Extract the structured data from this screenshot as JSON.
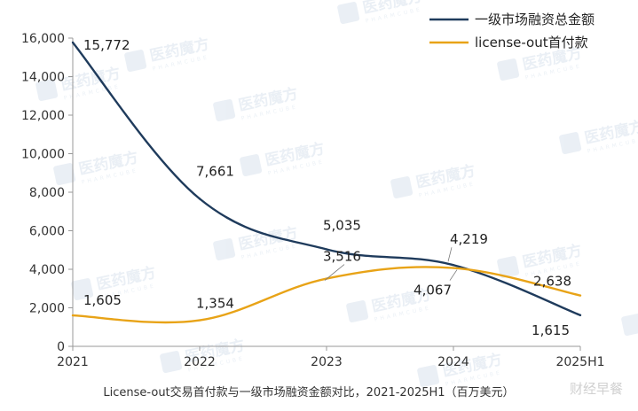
{
  "chart_data": {
    "type": "line",
    "categories": [
      "2021",
      "2022",
      "2023",
      "2024",
      "2025H1"
    ],
    "ylim": [
      0,
      16000
    ],
    "yticks": [
      "0",
      "2,000",
      "4,000",
      "6,000",
      "8,000",
      "10,000",
      "12,000",
      "14,000",
      "16,000"
    ],
    "grid": false,
    "legend_position": "top-right",
    "series": [
      {
        "name": "一级市场融资总金额",
        "color": "#1f3b5c",
        "values": [
          15772,
          7661,
          5035,
          4219,
          1615
        ],
        "labels": [
          "15,772",
          "7,661",
          "5,035",
          "4,219",
          "1,615"
        ]
      },
      {
        "name": "license-out首付款",
        "color": "#e8a317",
        "values": [
          1605,
          1354,
          3516,
          4067,
          2638
        ],
        "labels": [
          "1,605",
          "1,354",
          "3,516",
          "4,067",
          "2,638"
        ]
      }
    ],
    "caption": "License-out交易首付款与一级市场融资金额对比，2021-2025H1（百万美元）"
  },
  "watermark": {
    "text": "医药魔方",
    "subtext": "PHARMCUBE",
    "corner_text": "财经早餐"
  }
}
